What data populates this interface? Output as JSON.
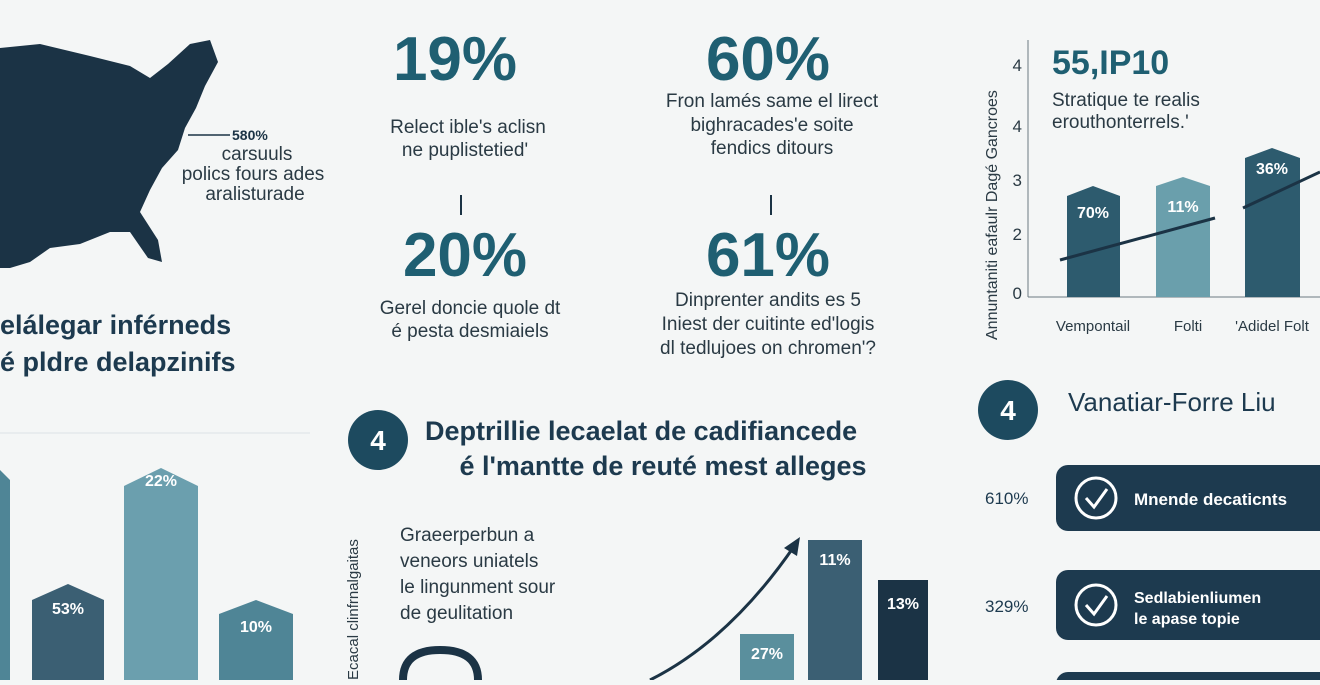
{
  "map_note": {
    "value": "580%",
    "lines": [
      "carsuuls",
      "polics fours ades",
      "aralisturade"
    ]
  },
  "left_heading": [
    "elálegar inférneds",
    "é pldre delapzinifs"
  ],
  "left_bars": [
    "53%",
    "22%",
    "10%"
  ],
  "stats": [
    {
      "value": "19%",
      "lines": [
        "Relect ible's aclisn",
        "ne puplistetied'"
      ]
    },
    {
      "value": "60%",
      "lines": [
        "Fron lamés same el lirect",
        "bighracades'e soite",
        "fendics ditours"
      ]
    },
    {
      "value": "20%",
      "lines": [
        "Gerel doncie quole dt",
        "é pesta desmiaiels"
      ]
    },
    {
      "value": "61%",
      "lines": [
        "Dinprenter andits es 5",
        "Iniest der cuitinte ed'logis",
        "dl tedlujoes on chromen'?"
      ]
    }
  ],
  "middle": {
    "number": "4",
    "heading": [
      "Deptrillie lecaelat de cadifiancede",
      "é l'mantte de reuté mest alleges"
    ],
    "vertical_label": "Ecacal clinfrnalgaitas",
    "text": [
      "Graeerperbun a",
      "veneors uniatels",
      "le lingunment sour",
      "de geulitation"
    ],
    "bars": [
      "27%",
      "11%",
      "13%"
    ]
  },
  "right_chart": {
    "title": "55,IP10",
    "subtitle": [
      "Stratique te realis",
      "erouthonterrels.'"
    ],
    "axis_label": "Annuntaniti eafaulr Dagé Gancroes",
    "yticks": [
      "4",
      "4",
      "3",
      "2",
      "0"
    ],
    "bars": [
      "70%",
      "11%",
      "36%"
    ],
    "categories": [
      "Vempontail",
      "Folti",
      "'Adidel Folt"
    ]
  },
  "right_list": {
    "number": "4",
    "heading": "Vanatiar-Forre Liu",
    "items": [
      {
        "value": "610%",
        "lines": [
          "Mnende decaticnts"
        ]
      },
      {
        "value": "329%",
        "lines": [
          "Sedlabienliumen",
          "le apase topie"
        ]
      }
    ]
  }
}
